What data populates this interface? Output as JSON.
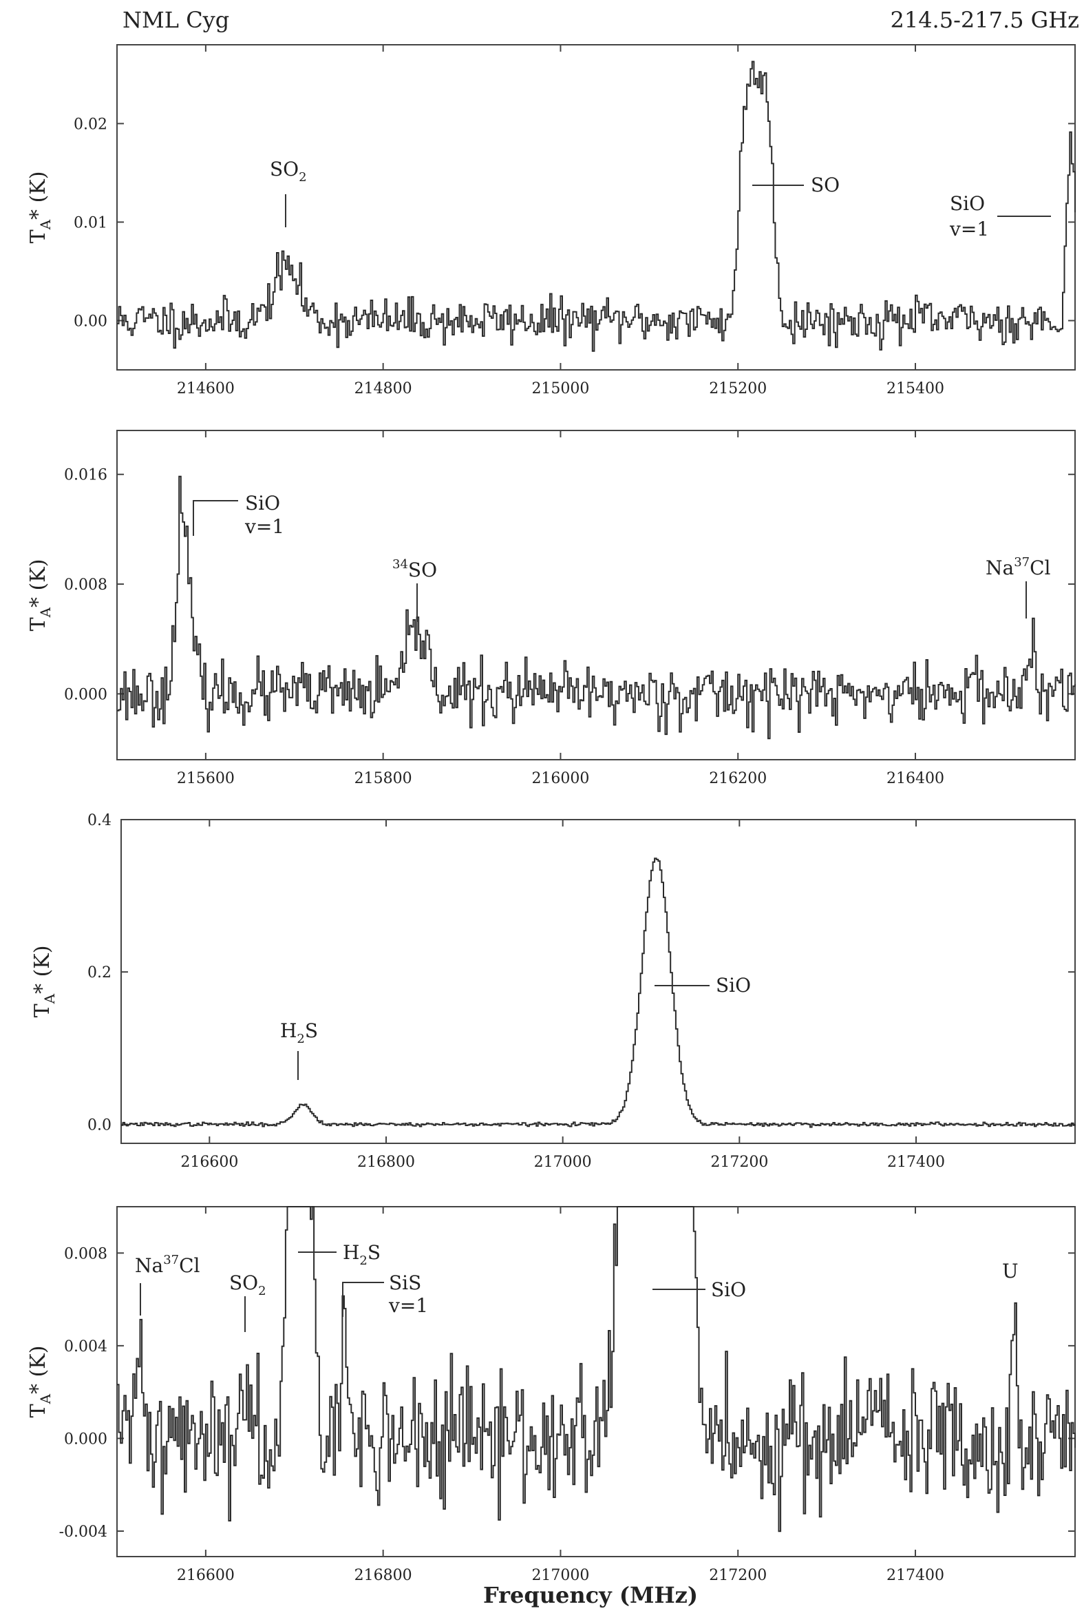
{
  "header": {
    "source": "NML Cyg",
    "range": "214.5-217.5 GHz"
  },
  "xlabel": "Frequency (MHz)",
  "chart_data": [
    {
      "type": "line",
      "ylabel_main": "T",
      "ylabel_sub": "A",
      "ylabel_rest": "* (K)",
      "xlim": [
        214500,
        215580
      ],
      "ylim": [
        -0.005,
        0.028
      ],
      "xticks": [
        214600,
        214800,
        215000,
        215200,
        215400
      ],
      "yticks": [
        0.0,
        0.01,
        0.02
      ],
      "ytick_labels": [
        "0.00",
        "0.01",
        "0.02"
      ],
      "lines": [
        {
          "center": 214690,
          "amp": 0.0055,
          "width": 14
        },
        {
          "center": 215220,
          "amp": 0.025,
          "width": 18,
          "flat": true
        },
        {
          "center": 215575,
          "amp": 0.018,
          "width": 5
        }
      ],
      "noise": 0.0011,
      "seed": 11,
      "annotations": [
        {
          "id": "so2",
          "text": "SO",
          "sub": "2",
          "freq": 214690
        },
        {
          "id": "so",
          "text": "SO",
          "freq": 215220
        },
        {
          "id": "sio-v1",
          "text": "SiO",
          "line2": "v=1",
          "freq": 215575
        }
      ]
    },
    {
      "type": "line",
      "ylabel_main": "T",
      "ylabel_sub": "A",
      "ylabel_rest": "* (K)",
      "xlim": [
        215500,
        216580
      ],
      "ylim": [
        -0.0048,
        0.0192
      ],
      "xticks": [
        215600,
        215800,
        216000,
        216200,
        216400
      ],
      "yticks": [
        0.0,
        0.008,
        0.016
      ],
      "ytick_labels": [
        "0.000",
        "0.008",
        "0.016"
      ],
      "lines": [
        {
          "center": 215575,
          "amp": 0.0105,
          "width": 8
        },
        {
          "center": 215570,
          "amp": 0.0075,
          "width": 2
        },
        {
          "center": 215838,
          "amp": 0.0045,
          "width": 12
        },
        {
          "center": 216530,
          "amp": 0.0032,
          "width": 4
        },
        {
          "center": 216470,
          "amp": 0.0025,
          "width": 2
        }
      ],
      "noise": 0.0011,
      "seed": 23,
      "annotations": [
        {
          "id": "sio-v1",
          "text": "SiO",
          "line2": "v=1",
          "freq": 215585
        },
        {
          "id": "34so",
          "pre": "34",
          "text": "SO",
          "freq": 215840
        },
        {
          "id": "na37cl",
          "text": "Na",
          "sup": "37",
          "after": "Cl",
          "freq": 216525
        }
      ]
    },
    {
      "type": "line",
      "ylabel_main": "T",
      "ylabel_sub": "A",
      "ylabel_rest": "* (K)",
      "xlim": [
        216500,
        217580
      ],
      "ylim": [
        -0.025,
        0.4
      ],
      "xticks": [
        216600,
        216800,
        217000,
        217200,
        217400
      ],
      "yticks": [
        0.0,
        0.2,
        0.4
      ],
      "ytick_labels": [
        "0.0",
        "0.2",
        "0.4"
      ],
      "lines": [
        {
          "center": 216705,
          "amp": 0.026,
          "width": 10
        },
        {
          "center": 217105,
          "amp": 0.35,
          "width": 16
        }
      ],
      "noise": 0.0012,
      "seed": 37,
      "annotations": [
        {
          "id": "h2s",
          "text": "H",
          "sub": "2",
          "after": "S",
          "freq": 216710
        },
        {
          "id": "sio",
          "text": "SiO",
          "freq": 217105
        }
      ]
    },
    {
      "type": "line",
      "ylabel_main": "T",
      "ylabel_sub": "A",
      "ylabel_rest": "* (K)",
      "xlim": [
        216500,
        217580
      ],
      "ylim": [
        -0.0051,
        0.01
      ],
      "xticks": [
        216600,
        216800,
        217000,
        217200,
        217400
      ],
      "yticks": [
        -0.004,
        0.0,
        0.004,
        0.008
      ],
      "ytick_labels": [
        "-0.004",
        "0.000",
        "0.004",
        "0.008"
      ],
      "lines": [
        {
          "center": 216525,
          "amp": 0.0038,
          "width": 5
        },
        {
          "center": 216645,
          "amp": 0.0028,
          "width": 6
        },
        {
          "center": 216705,
          "amp": 0.026,
          "width": 10
        },
        {
          "center": 216755,
          "amp": 0.0035,
          "width": 4
        },
        {
          "center": 217105,
          "amp": 0.35,
          "width": 16
        },
        {
          "center": 217510,
          "amp": 0.0045,
          "width": 3
        },
        {
          "center": 217350,
          "amp": 0.002,
          "width": 5
        }
      ],
      "noise": 0.0014,
      "seed": 41,
      "annotations": [
        {
          "id": "na37cl",
          "text": "Na",
          "sup": "37",
          "after": "Cl",
          "freq": 216525
        },
        {
          "id": "so2",
          "text": "SO",
          "sub": "2",
          "freq": 216643
        },
        {
          "id": "h2s",
          "text": "H",
          "sub": "2",
          "after": "S",
          "freq": 216705
        },
        {
          "id": "sis-v1",
          "text": "SiS",
          "line2": "v=1",
          "freq": 216757
        },
        {
          "id": "sio",
          "text": "SiO",
          "freq": 217105
        },
        {
          "id": "u",
          "text": "U",
          "freq": 217510
        }
      ]
    }
  ]
}
